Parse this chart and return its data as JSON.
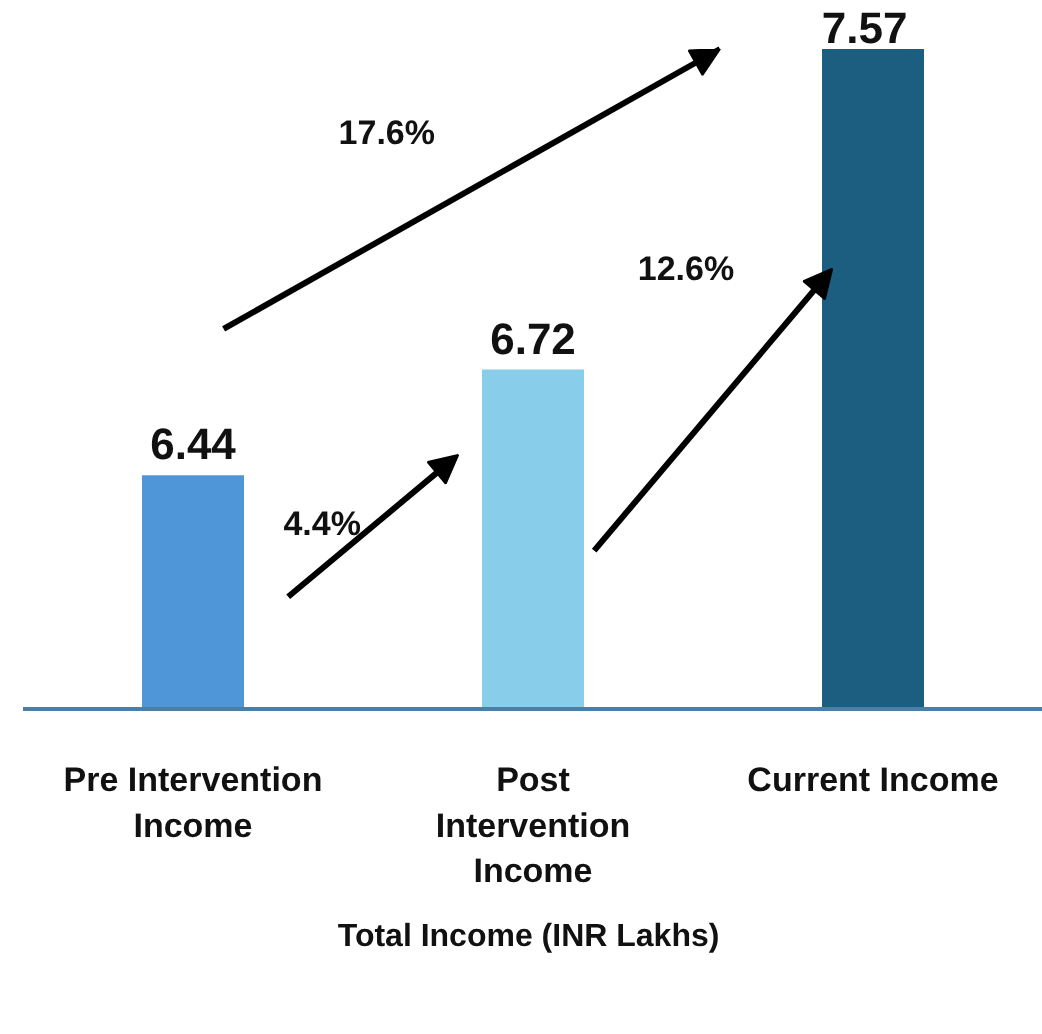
{
  "chart_data": {
    "type": "bar",
    "xlabel": "Total Income  (INR Lakhs)",
    "categories": [
      "Pre Intervention\nIncome",
      "Post\nIntervention\nIncome",
      "Current Income"
    ],
    "values": [
      6.44,
      6.72,
      7.57
    ],
    "ylim": [
      5.82,
      7.57
    ],
    "data_labels": true,
    "colors": [
      "#4f96d9",
      "#88ceeb",
      "#1b5e80"
    ],
    "grid": false,
    "annotations": [
      "4.4%",
      "12.6%",
      "17.6%"
    ]
  }
}
